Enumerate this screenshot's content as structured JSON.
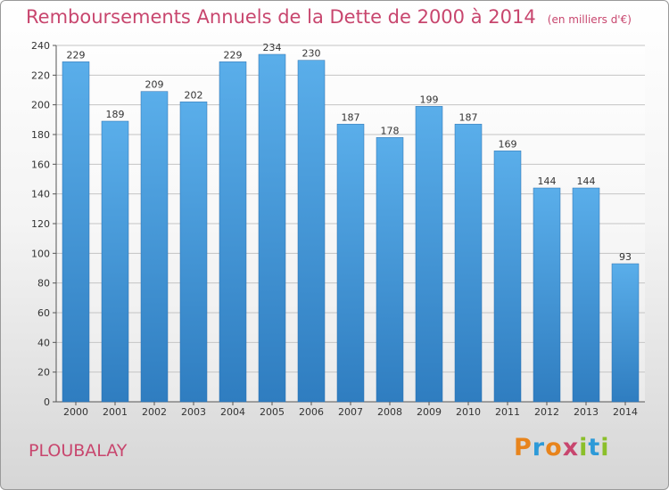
{
  "header": {
    "title": "Remboursements Annuels de la Dette de 2000 à 2014",
    "unit": "(en milliers d'€)"
  },
  "footer": {
    "commune": "PLOUBALAY",
    "logo": [
      "P",
      "r",
      "o",
      "x",
      "i",
      "t",
      "i"
    ]
  },
  "colors": {
    "title": "#c8466e",
    "bar_top": "#5aaeea",
    "bar_bottom": "#2f7dc0",
    "logo": [
      "#e8841c",
      "#2d9ad8",
      "#e8841c",
      "#c8466e",
      "#8bbf2a",
      "#2d9ad8",
      "#8bbf2a"
    ]
  },
  "chart_data": {
    "type": "bar",
    "title": "Remboursements Annuels de la Dette de 2000 à 2014",
    "unit": "(en milliers d'€)",
    "categories": [
      "2000",
      "2001",
      "2002",
      "2003",
      "2004",
      "2005",
      "2006",
      "2007",
      "2008",
      "2009",
      "2010",
      "2011",
      "2012",
      "2013",
      "2014"
    ],
    "values": [
      229,
      189,
      209,
      202,
      229,
      234,
      230,
      187,
      178,
      199,
      187,
      169,
      144,
      144,
      93
    ],
    "ylim": [
      0,
      240
    ],
    "yticks": [
      0,
      20,
      40,
      60,
      80,
      100,
      120,
      140,
      160,
      180,
      200,
      220,
      240
    ],
    "grid": true,
    "legend": "none"
  }
}
